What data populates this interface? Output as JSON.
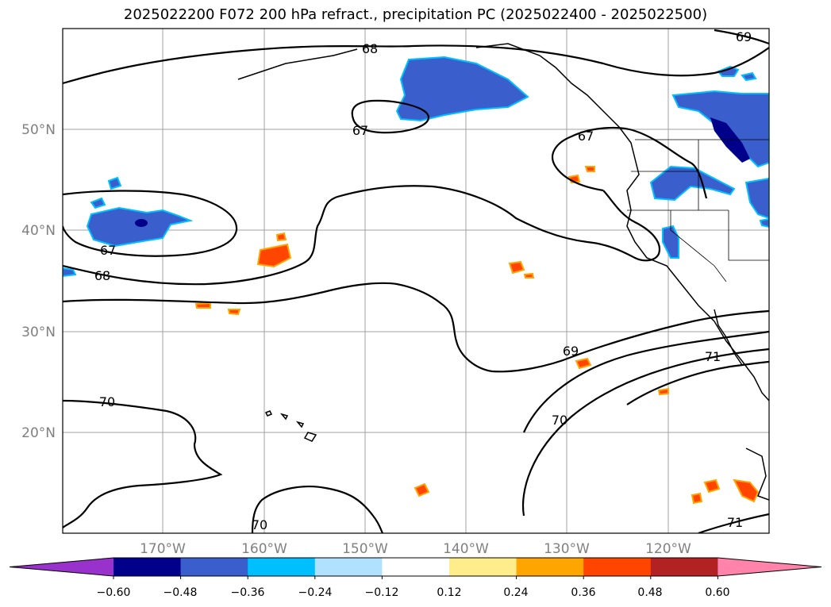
{
  "title": "2025022200 F072 200 hPa refract., precipitation PC (2025022400 - 2025022500)",
  "lat_labels": [
    "50°N",
    "40°N",
    "30°N",
    "20°N"
  ],
  "lon_labels": [
    "170°W",
    "160°W",
    "150°W",
    "140°W",
    "130°W",
    "120°W"
  ],
  "contour_labels": [
    "68",
    "69",
    "67",
    "67",
    "67",
    "68",
    "69",
    "71",
    "70",
    "70",
    "70",
    "71"
  ],
  "colorbar": {
    "colors": [
      "#9932cc",
      "#00008b",
      "#3a5fcd",
      "#00bfff",
      "#b0e2ff",
      "#ffffff",
      "#ffec8b",
      "#ffa500",
      "#ff4500",
      "#b22222",
      "#ff83aa"
    ],
    "tick_labels": [
      "−0.60",
      "−0.48",
      "−0.36",
      "−0.24",
      "−0.12",
      "0.12",
      "0.24",
      "0.36",
      "0.48",
      "0.60"
    ]
  }
}
